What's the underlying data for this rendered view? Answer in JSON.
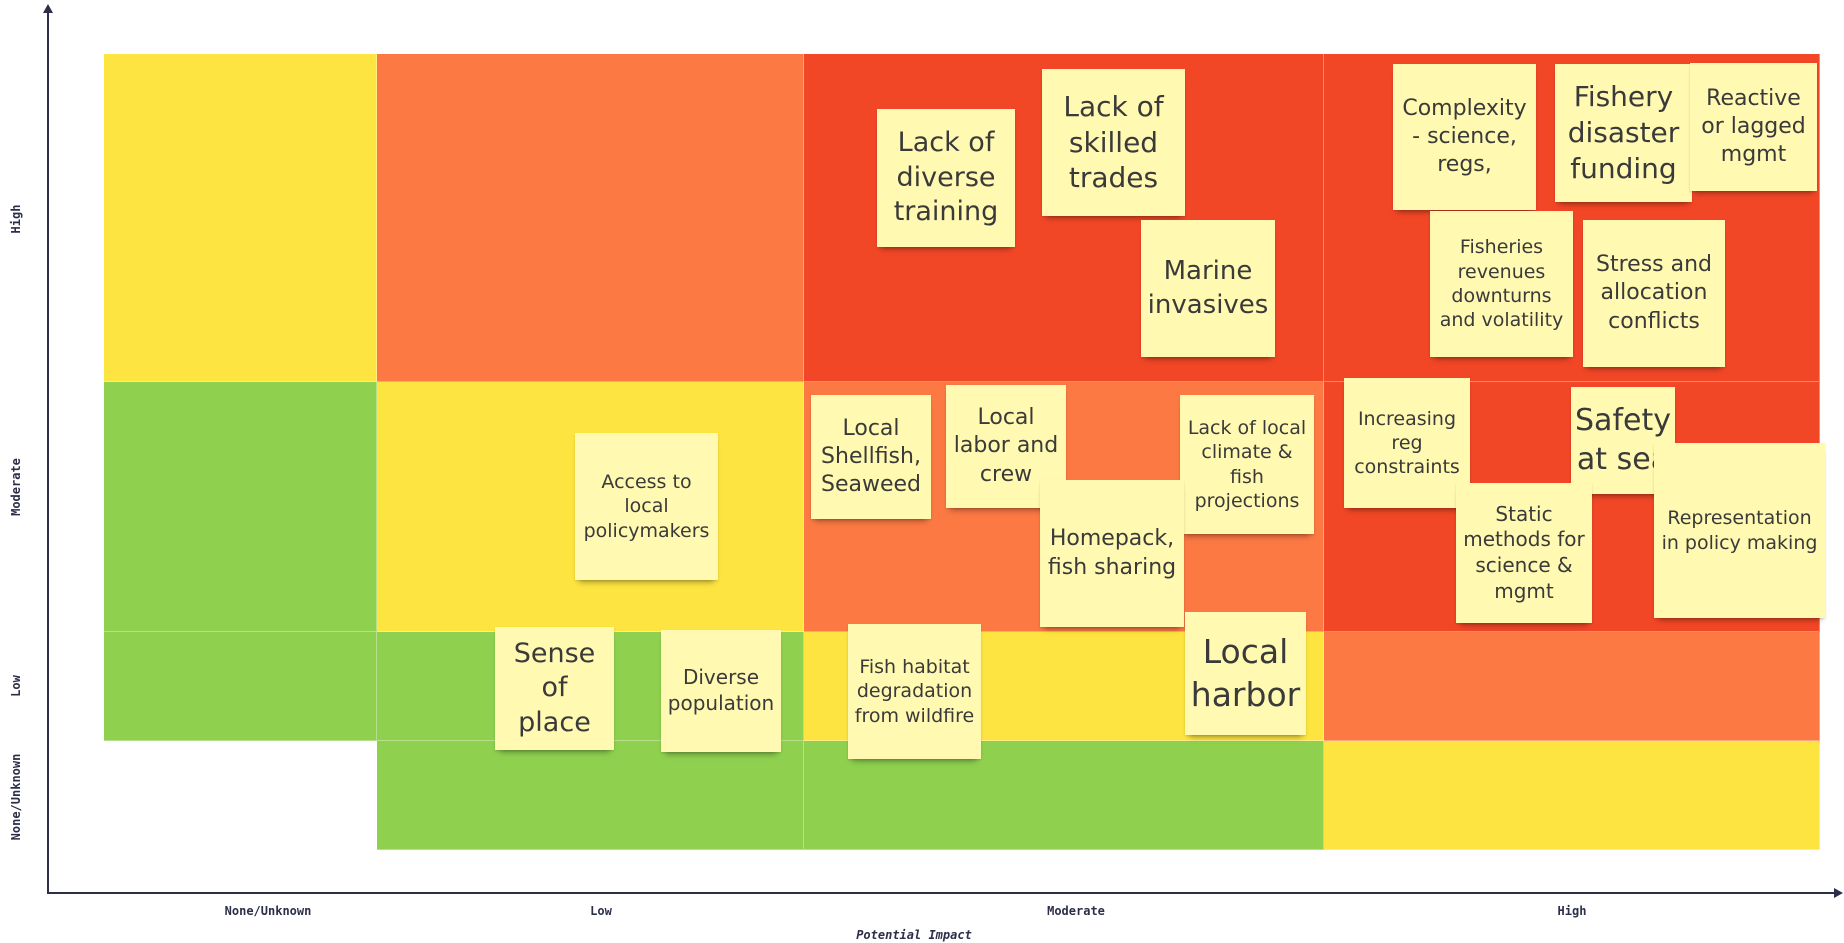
{
  "colors": {
    "green": "#8fd14f",
    "yellow": "#fee440",
    "orange": "#fc7943",
    "red": "#f24726",
    "sticky": "#fff9b1",
    "axis": "#2d2f4a"
  },
  "axes": {
    "x_title": "Potential Impact",
    "x_labels": [
      "None/Unknown",
      "Low",
      "Moderate",
      "High"
    ],
    "y_labels": [
      "High",
      "Moderate",
      "Low",
      "None/Unknown"
    ]
  },
  "grid": [
    [
      "yellow",
      "orange",
      "red",
      "red"
    ],
    [
      "green",
      "yellow",
      "orange",
      "red"
    ],
    [
      "green",
      "green",
      "yellow",
      "orange"
    ],
    [
      "white",
      "green",
      "green",
      "yellow"
    ]
  ],
  "notes": [
    {
      "id": "lack-of-diverse-training",
      "text": "Lack of diverse training"
    },
    {
      "id": "lack-of-skilled-trades",
      "text": "Lack of skilled trades"
    },
    {
      "id": "marine-invasives",
      "text": "Marine invasives"
    },
    {
      "id": "complexity",
      "text": "Complexity - science, regs,"
    },
    {
      "id": "fishery-disaster-funding",
      "text": "Fishery disaster funding"
    },
    {
      "id": "reactive-or-lagged-mgmt",
      "text": "Reactive or lagged mgmt"
    },
    {
      "id": "fisheries-revenues",
      "text": "Fisheries revenues downturns and volatility"
    },
    {
      "id": "stress-and-allocation",
      "text": "Stress and allocation conflicts"
    },
    {
      "id": "access-to-policymakers",
      "text": "Access to local policymakers"
    },
    {
      "id": "local-shellfish",
      "text": "Local Shellfish, Seaweed"
    },
    {
      "id": "local-labor",
      "text": "Local labor and crew"
    },
    {
      "id": "lack-of-local-climate",
      "text": "Lack of local climate & fish projections"
    },
    {
      "id": "homepack",
      "text": "Homepack, fish sharing"
    },
    {
      "id": "increasing-reg",
      "text": "Increasing reg constraints"
    },
    {
      "id": "safety-at-sea",
      "text": "Safety at sea"
    },
    {
      "id": "static-methods",
      "text": "Static methods for science & mgmt"
    },
    {
      "id": "representation",
      "text": "Representation in policy making"
    },
    {
      "id": "sense-of-place",
      "text": "Sense of place"
    },
    {
      "id": "diverse-population",
      "text": "Diverse population"
    },
    {
      "id": "fish-habitat",
      "text": "Fish habitat degradation from wildfire"
    },
    {
      "id": "local-harbor",
      "text": "Local harbor"
    }
  ]
}
